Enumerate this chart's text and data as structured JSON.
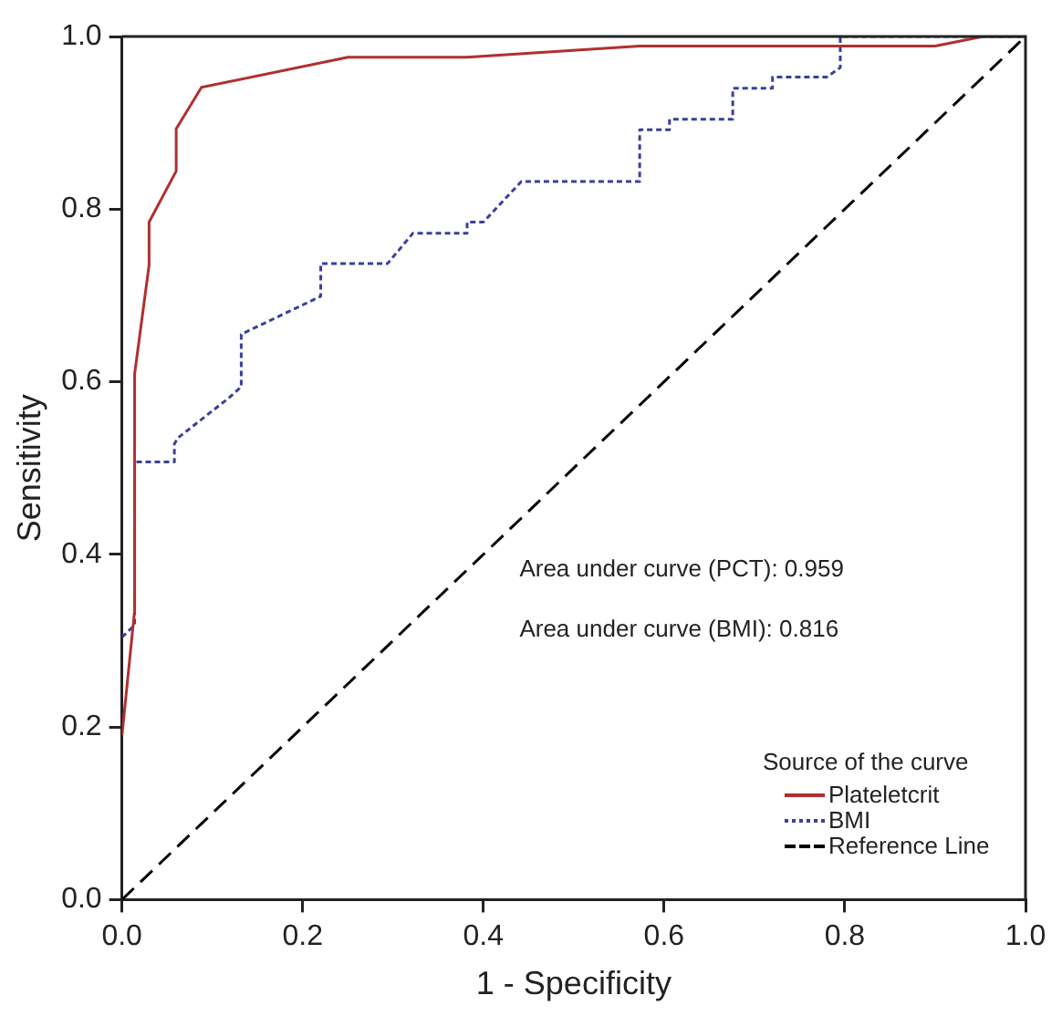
{
  "chart_data": {
    "type": "line",
    "xlabel": "1 - Specificity",
    "ylabel": "Sensitivity",
    "legend_title": "Source of the curve",
    "legend": "bottom right",
    "grid": false,
    "marker": "none",
    "xlim": [
      0,
      1
    ],
    "ylim": [
      0,
      1
    ],
    "xticks": [
      {
        "value": 0,
        "label": "0.0"
      },
      {
        "value": 0.2,
        "label": "0.2"
      },
      {
        "value": 0.4,
        "label": "0.4"
      },
      {
        "value": 0.6,
        "label": "0.6"
      },
      {
        "value": 0.8,
        "label": "0.8"
      },
      {
        "value": 1,
        "label": "1.0"
      }
    ],
    "yticks": [
      {
        "value": 0,
        "label": "0.0"
      },
      {
        "value": 0.2,
        "label": "0.2"
      },
      {
        "value": 0.4,
        "label": "0.4"
      },
      {
        "value": 0.6,
        "label": "0.6"
      },
      {
        "value": 0.8,
        "label": "0.8"
      },
      {
        "value": 1,
        "label": "1.0"
      }
    ],
    "annotations": [
      "Area under curve (PCT): 0.959",
      "Area under curve (BMI): 0.816"
    ],
    "series": [
      {
        "name": "Plateletcrit",
        "color": "#b22f2f",
        "line_style": "solid",
        "x": [
          0,
          0.014,
          0.014,
          0.03,
          0.03,
          0.06,
          0.06,
          0.088,
          0.25,
          0.382,
          0.573,
          0.9,
          0.953,
          1
        ],
        "values": [
          0.19,
          0.335,
          0.609,
          0.735,
          0.785,
          0.844,
          0.893,
          0.941,
          0.976,
          0.976,
          0.989,
          0.989,
          1,
          1
        ]
      },
      {
        "name": "BMI",
        "color": "#3b3f9e",
        "line_style": "dotted",
        "x": [
          0,
          0.014,
          0.014,
          0.058,
          0.058,
          0.062,
          0.118,
          0.132,
          0.132,
          0.22,
          0.22,
          0.294,
          0.322,
          0.382,
          0.382,
          0.4,
          0.442,
          0.573,
          0.573,
          0.606,
          0.606,
          0.676,
          0.676,
          0.72,
          0.72,
          0.78,
          0.795,
          0.795,
          1
        ],
        "values": [
          0.304,
          0.318,
          0.507,
          0.507,
          0.528,
          0.535,
          0.581,
          0.594,
          0.655,
          0.699,
          0.737,
          0.737,
          0.772,
          0.772,
          0.785,
          0.785,
          0.832,
          0.832,
          0.892,
          0.892,
          0.904,
          0.904,
          0.94,
          0.94,
          0.953,
          0.953,
          0.964,
          1,
          1
        ]
      },
      {
        "name": "Reference Line",
        "color": "#000000",
        "line_style": "dashed",
        "x": [
          0,
          1
        ],
        "values": [
          0,
          1
        ]
      }
    ]
  }
}
